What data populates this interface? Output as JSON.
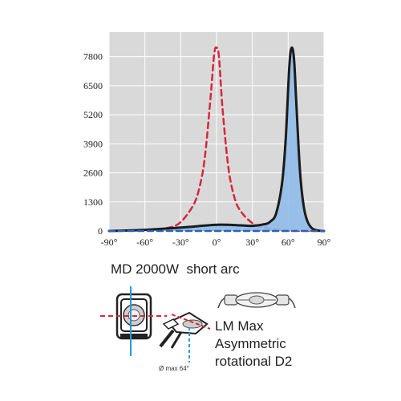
{
  "chart_data": {
    "type": "line",
    "title": "",
    "xlabel": "",
    "ylabel": "",
    "x_ticks": [
      "-90°",
      "-60°",
      "-30°",
      "0°",
      "30°",
      "60°",
      "90°"
    ],
    "y_ticks": [
      "0",
      "1300",
      "2600",
      "3900",
      "5200",
      "6500",
      "7800"
    ],
    "xlim": [
      -90,
      90
    ],
    "ylim": [
      0,
      8900
    ],
    "grid": true,
    "series": [
      {
        "style": "dashed",
        "color": "#d7263d",
        "x": [
          -90,
          -60,
          -40,
          -30,
          -20,
          -15,
          -10,
          -5,
          -2,
          0,
          2,
          5,
          10,
          15,
          20,
          30,
          40,
          60,
          90
        ],
        "y": [
          0,
          20,
          150,
          400,
          1100,
          1800,
          3200,
          6000,
          7900,
          8200,
          7800,
          5500,
          2800,
          1500,
          900,
          350,
          150,
          20,
          0
        ]
      },
      {
        "style": "solid",
        "color": "#1b1b1b",
        "fill": "#8fbbe8",
        "x": [
          -90,
          -60,
          -30,
          0,
          20,
          30,
          40,
          45,
          50,
          55,
          58,
          61,
          63,
          65,
          67,
          70,
          73,
          76,
          80,
          85,
          90
        ],
        "y": [
          0,
          50,
          150,
          280,
          250,
          230,
          300,
          420,
          800,
          2200,
          4200,
          7400,
          8200,
          7600,
          5500,
          2600,
          1100,
          450,
          120,
          20,
          0
        ]
      },
      {
        "style": "dashed",
        "color": "#2a63b8",
        "x": [
          -90,
          90
        ],
        "y": [
          0,
          0
        ]
      }
    ]
  },
  "caption": "MD 2000W  short arc",
  "lamp_text": [
    "LM Max",
    "Asymmetric",
    "rotational D2"
  ],
  "diameter_label": "Ø max 64°"
}
